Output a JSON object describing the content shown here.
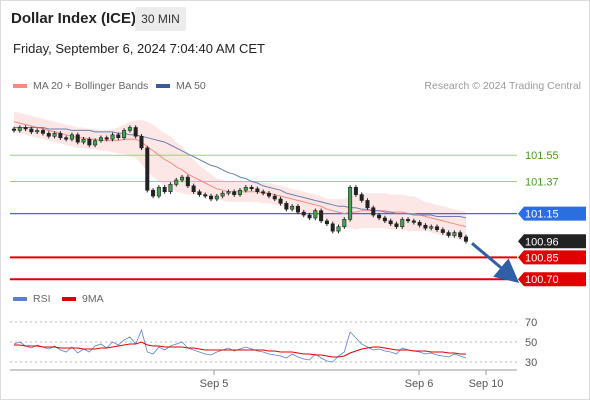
{
  "header": {
    "title": "Dollar Index (ICE)",
    "interval": "30 MIN",
    "timestamp": "Friday, September 6, 2024 7:04:40 AM CET"
  },
  "legend": {
    "items": [
      {
        "label": "MA 20 + Bollinger Bands",
        "color": "#f28b82"
      },
      {
        "label": "MA 50",
        "color": "#3a5a9b"
      }
    ],
    "credit": "Research © 2024 Trading Central"
  },
  "indicator_legend": {
    "items": [
      {
        "label": "RSI",
        "color": "#5b7fd8"
      },
      {
        "label": "9MA",
        "color": "#e00000"
      }
    ]
  },
  "chart_data": [
    {
      "type": "candlestick",
      "ylim": [
        100.64,
        101.86
      ],
      "x_tick_labels": [
        "Sep 5",
        "Sep 6",
        "Sep 10"
      ],
      "levels": [
        {
          "value": 101.55,
          "label": "101.55",
          "kind": "resistance"
        },
        {
          "value": 101.37,
          "label": "101.37",
          "kind": "resistance"
        },
        {
          "value": 101.15,
          "label": "101.15",
          "kind": "pivot"
        },
        {
          "value": 100.96,
          "label": "100.96",
          "kind": "last"
        },
        {
          "value": 100.85,
          "label": "100.85",
          "kind": "support"
        },
        {
          "value": 100.7,
          "label": "100.70",
          "kind": "support"
        }
      ],
      "close_series": [
        101.72,
        101.74,
        101.73,
        101.71,
        101.72,
        101.7,
        101.68,
        101.7,
        101.67,
        101.66,
        101.69,
        101.64,
        101.66,
        101.62,
        101.65,
        101.67,
        101.66,
        101.69,
        101.67,
        101.72,
        101.74,
        101.68,
        101.6,
        101.31,
        101.27,
        101.33,
        101.3,
        101.35,
        101.38,
        101.4,
        101.34,
        101.3,
        101.28,
        101.27,
        101.25,
        101.27,
        101.29,
        101.3,
        101.28,
        101.31,
        101.33,
        101.32,
        101.3,
        101.29,
        101.27,
        101.25,
        101.22,
        101.18,
        101.2,
        101.16,
        101.14,
        101.12,
        101.17,
        101.1,
        101.08,
        101.03,
        101.06,
        101.11,
        101.33,
        101.28,
        101.24,
        101.19,
        101.14,
        101.12,
        101.1,
        101.08,
        101.06,
        101.11,
        101.1,
        101.09,
        101.07,
        101.05,
        101.06,
        101.04,
        101.02,
        101.0,
        101.02,
        100.99,
        100.96
      ],
      "ma20_series": [
        101.78,
        101.77,
        101.76,
        101.75,
        101.74,
        101.73,
        101.72,
        101.71,
        101.7,
        101.69,
        101.68,
        101.67,
        101.67,
        101.66,
        101.66,
        101.65,
        101.65,
        101.65,
        101.65,
        101.66,
        101.66,
        101.66,
        101.64,
        101.61,
        101.58,
        101.55,
        101.52,
        101.5,
        101.47,
        101.45,
        101.42,
        101.4,
        101.38,
        101.36,
        101.34,
        101.32,
        101.31,
        101.3,
        101.3,
        101.3,
        101.3,
        101.3,
        101.3,
        101.29,
        101.29,
        101.28,
        101.27,
        101.26,
        101.25,
        101.24,
        101.23,
        101.22,
        101.21,
        101.2,
        101.18,
        101.17,
        101.16,
        101.15,
        101.16,
        101.16,
        101.17,
        101.17,
        101.17,
        101.17,
        101.17,
        101.16,
        101.16,
        101.16,
        101.15,
        101.15,
        101.14,
        101.13,
        101.12,
        101.11,
        101.1,
        101.09,
        101.08,
        101.07,
        101.06
      ],
      "ma50_series": [
        101.74,
        101.74,
        101.74,
        101.74,
        101.74,
        101.74,
        101.73,
        101.73,
        101.73,
        101.73,
        101.72,
        101.72,
        101.72,
        101.72,
        101.71,
        101.71,
        101.71,
        101.71,
        101.7,
        101.7,
        101.69,
        101.69,
        101.68,
        101.67,
        101.66,
        101.65,
        101.64,
        101.62,
        101.6,
        101.58,
        101.56,
        101.54,
        101.52,
        101.5,
        101.48,
        101.47,
        101.45,
        101.43,
        101.42,
        101.4,
        101.39,
        101.37,
        101.36,
        101.34,
        101.33,
        101.32,
        101.31,
        101.29,
        101.28,
        101.27,
        101.26,
        101.25,
        101.24,
        101.23,
        101.22,
        101.21,
        101.2,
        101.2,
        101.19,
        101.19,
        101.18,
        101.18,
        101.17,
        101.17,
        101.16,
        101.16,
        101.15,
        101.15,
        101.15,
        101.14,
        101.14,
        101.14,
        101.14,
        101.13,
        101.13,
        101.13,
        101.13,
        101.13,
        101.12
      ],
      "bollinger_band_width": [
        0.07,
        0.07,
        0.07,
        0.07,
        0.07,
        0.07,
        0.07,
        0.07,
        0.07,
        0.07,
        0.07,
        0.07,
        0.07,
        0.07,
        0.07,
        0.07,
        0.07,
        0.08,
        0.09,
        0.1,
        0.12,
        0.13,
        0.15,
        0.17,
        0.18,
        0.18,
        0.18,
        0.18,
        0.17,
        0.16,
        0.14,
        0.12,
        0.1,
        0.09,
        0.08,
        0.07,
        0.07,
        0.07,
        0.07,
        0.07,
        0.07,
        0.07,
        0.07,
        0.07,
        0.07,
        0.07,
        0.07,
        0.07,
        0.07,
        0.07,
        0.07,
        0.07,
        0.07,
        0.07,
        0.07,
        0.08,
        0.09,
        0.1,
        0.11,
        0.12,
        0.12,
        0.12,
        0.12,
        0.12,
        0.12,
        0.12,
        0.12,
        0.12,
        0.12,
        0.12,
        0.11,
        0.1,
        0.1,
        0.1,
        0.1,
        0.1,
        0.1,
        0.1,
        0.1
      ],
      "forecast_arrow": {
        "from": 100.96,
        "to": 100.7
      }
    },
    {
      "type": "line",
      "ylim": [
        20,
        80
      ],
      "y_ticks": [
        70,
        50,
        30
      ],
      "series": [
        {
          "name": "RSI",
          "values": [
            48,
            50,
            46,
            44,
            47,
            45,
            43,
            46,
            42,
            40,
            45,
            39,
            43,
            40,
            46,
            48,
            44,
            50,
            47,
            52,
            55,
            48,
            62,
            40,
            38,
            45,
            42,
            46,
            48,
            50,
            44,
            42,
            40,
            38,
            37,
            40,
            42,
            44,
            41,
            43,
            45,
            43,
            41,
            40,
            38,
            37,
            36,
            34,
            38,
            35,
            33,
            32,
            38,
            34,
            31,
            30,
            36,
            40,
            60,
            54,
            48,
            45,
            42,
            43,
            41,
            40,
            38,
            44,
            42,
            41,
            40,
            38,
            39,
            37,
            36,
            35,
            38,
            36,
            34
          ]
        },
        {
          "name": "9MA",
          "values": [
            47,
            47,
            46,
            46,
            46,
            45,
            45,
            45,
            44,
            44,
            44,
            44,
            43,
            43,
            43,
            44,
            44,
            45,
            46,
            47,
            48,
            48,
            50,
            47,
            46,
            46,
            45,
            45,
            45,
            45,
            44,
            44,
            43,
            42,
            42,
            42,
            42,
            42,
            42,
            42,
            42,
            42,
            42,
            42,
            41,
            41,
            40,
            40,
            40,
            39,
            38,
            38,
            37,
            37,
            36,
            35,
            35,
            36,
            39,
            41,
            43,
            44,
            45,
            45,
            44,
            43,
            42,
            42,
            42,
            41,
            41,
            41,
            40,
            40,
            40,
            39,
            39,
            38,
            38
          ]
        }
      ]
    }
  ]
}
